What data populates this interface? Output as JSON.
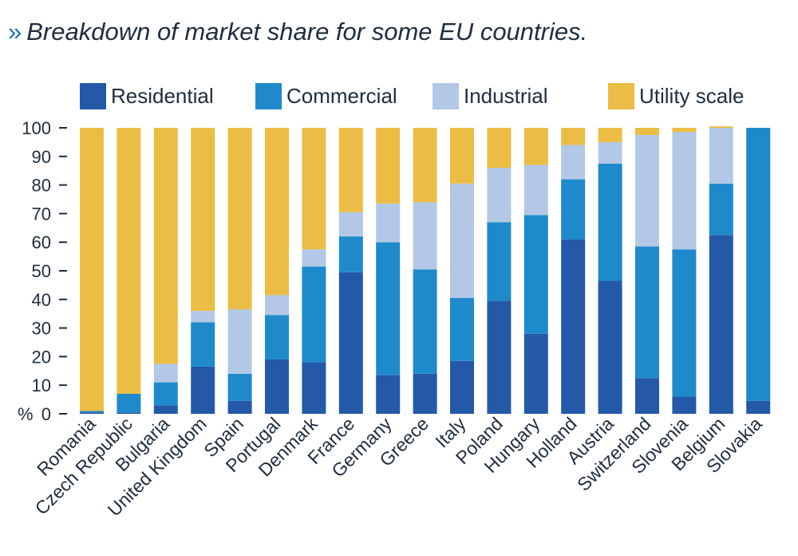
{
  "title": "Breakdown of market share for some EU countries.",
  "title_marker": "»",
  "chart_data": {
    "type": "bar",
    "stacked": true,
    "title": "Breakdown of market share for some EU countries.",
    "ylabel": "%",
    "ylim": [
      0,
      100
    ],
    "yticks": [
      0,
      10,
      20,
      30,
      40,
      50,
      60,
      70,
      80,
      90,
      100
    ],
    "legend_position": "top",
    "categories": [
      "Romania",
      "Czech Republic",
      "Bulgaria",
      "United Kingdom",
      "Spain",
      "Portugal",
      "Denmark",
      "France",
      "Germany",
      "Greece",
      "Italy",
      "Poland",
      "Hungary",
      "Holland",
      "Austria",
      "Switzerland",
      "Slovenia",
      "Belgium",
      "Slovakia"
    ],
    "series": [
      {
        "name": "Residential",
        "color": "#2459a8",
        "values": [
          0.5,
          0.5,
          3,
          16.5,
          4.5,
          19,
          18,
          49.5,
          13.5,
          14,
          18.5,
          39.5,
          28,
          61,
          46.5,
          12.5,
          6,
          62.5,
          4.5
        ]
      },
      {
        "name": "Commercial",
        "color": "#1e8acb",
        "values": [
          0.5,
          6.5,
          8,
          15.5,
          9.5,
          15.5,
          33.5,
          12.5,
          46.5,
          36.5,
          22,
          27.5,
          41.5,
          21,
          41,
          46,
          51.5,
          18,
          95.5
        ]
      },
      {
        "name": "Industrial",
        "color": "#b2c8e6",
        "values": [
          0,
          0,
          6.5,
          4,
          22.5,
          7,
          6,
          8.5,
          13.5,
          23.5,
          40,
          19,
          17.5,
          12,
          7.5,
          39,
          41,
          19.5,
          0
        ]
      },
      {
        "name": "Utility scale",
        "color": "#ebbd44",
        "values": [
          99,
          93,
          82.5,
          64,
          63.5,
          58.5,
          42.5,
          29.5,
          26.5,
          26,
          19.5,
          14,
          13,
          6,
          5,
          2.5,
          1.5,
          0.5,
          0
        ]
      }
    ]
  }
}
